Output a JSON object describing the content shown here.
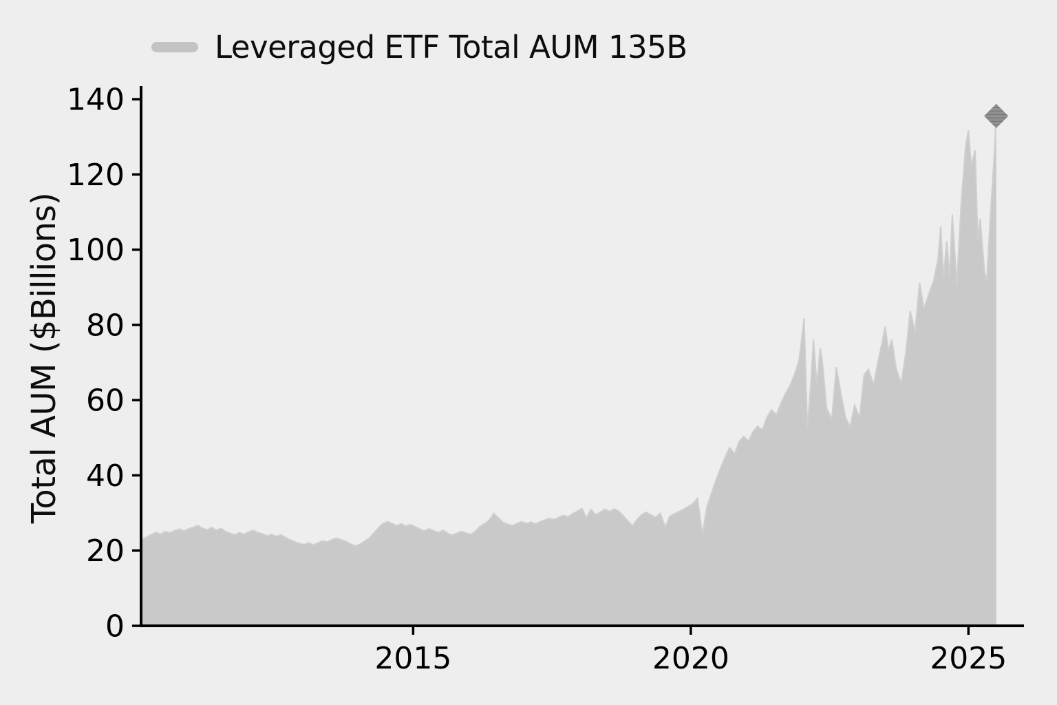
{
  "figure": {
    "background_color": "#eeeeee"
  },
  "chart_data": {
    "type": "area",
    "title": "",
    "legend_label": "Leveraged ETF Total AUM 135B",
    "legend_position": "top-left",
    "xlabel": "",
    "ylabel": "Total AUM ($Billions)",
    "xlim": [
      2010.1,
      2026.0
    ],
    "ylim": [
      0,
      143.5
    ],
    "xticks": [
      2015,
      2020,
      2025
    ],
    "yticks": [
      0,
      20,
      40,
      60,
      80,
      100,
      120,
      140
    ],
    "grid": false,
    "colors": {
      "background": "#eeeeee",
      "area_fill": "#c9c9c9",
      "edge_line": "#cfcfcf",
      "legend_swatch": "#c3c3c3",
      "marker_fill": "#919191",
      "marker_hatch": "#6f6f6f",
      "axis": "#000000",
      "tick_text": "#000000"
    },
    "end_marker": {
      "shape": "diamond",
      "x": 2025.5,
      "y": 135,
      "value_label": "135B"
    },
    "series": [
      {
        "name": "Leveraged ETF Total AUM",
        "x": [
          2010.12,
          2010.2,
          2010.29,
          2010.37,
          2010.45,
          2010.54,
          2010.62,
          2010.7,
          2010.79,
          2010.87,
          2010.95,
          2011.04,
          2011.12,
          2011.2,
          2011.29,
          2011.37,
          2011.45,
          2011.54,
          2011.62,
          2011.7,
          2011.79,
          2011.87,
          2011.95,
          2012.04,
          2012.12,
          2012.2,
          2012.29,
          2012.37,
          2012.45,
          2012.54,
          2012.62,
          2012.7,
          2012.79,
          2012.87,
          2012.95,
          2013.04,
          2013.12,
          2013.2,
          2013.29,
          2013.37,
          2013.45,
          2013.54,
          2013.62,
          2013.7,
          2013.79,
          2013.87,
          2013.95,
          2014.04,
          2014.12,
          2014.2,
          2014.29,
          2014.37,
          2014.45,
          2014.54,
          2014.62,
          2014.7,
          2014.79,
          2014.87,
          2014.95,
          2015.04,
          2015.12,
          2015.2,
          2015.29,
          2015.37,
          2015.45,
          2015.54,
          2015.62,
          2015.7,
          2015.79,
          2015.87,
          2015.95,
          2016.04,
          2016.12,
          2016.2,
          2016.29,
          2016.37,
          2016.45,
          2016.54,
          2016.62,
          2016.7,
          2016.79,
          2016.87,
          2016.95,
          2017.04,
          2017.12,
          2017.2,
          2017.29,
          2017.37,
          2017.45,
          2017.54,
          2017.62,
          2017.7,
          2017.79,
          2017.87,
          2017.95,
          2018.04,
          2018.12,
          2018.2,
          2018.29,
          2018.37,
          2018.45,
          2018.54,
          2018.62,
          2018.7,
          2018.79,
          2018.87,
          2018.95,
          2019.04,
          2019.12,
          2019.2,
          2019.29,
          2019.37,
          2019.45,
          2019.54,
          2019.62,
          2019.7,
          2019.79,
          2019.87,
          2019.95,
          2020.04,
          2020.12,
          2020.21,
          2020.29,
          2020.37,
          2020.45,
          2020.54,
          2020.62,
          2020.7,
          2020.79,
          2020.87,
          2020.95,
          2021.04,
          2021.12,
          2021.2,
          2021.29,
          2021.37,
          2021.45,
          2021.54,
          2021.62,
          2021.7,
          2021.79,
          2021.87,
          2021.95,
          2022.04,
          2022.1,
          2022.16,
          2022.21,
          2022.27,
          2022.33,
          2022.37,
          2022.45,
          2022.54,
          2022.62,
          2022.7,
          2022.79,
          2022.87,
          2022.95,
          2023.04,
          2023.12,
          2023.2,
          2023.29,
          2023.37,
          2023.45,
          2023.5,
          2023.56,
          2023.62,
          2023.7,
          2023.79,
          2023.87,
          2023.95,
          2024.04,
          2024.12,
          2024.2,
          2024.29,
          2024.37,
          2024.45,
          2024.5,
          2024.55,
          2024.61,
          2024.66,
          2024.71,
          2024.79,
          2024.87,
          2024.95,
          2025.0,
          2025.05,
          2025.12,
          2025.17,
          2025.21,
          2025.29,
          2025.33,
          2025.38,
          2025.45,
          2025.5
        ],
        "y": [
          23.0,
          23.6,
          24.3,
          24.8,
          24.4,
          25.1,
          24.7,
          25.3,
          25.7,
          25.2,
          25.8,
          26.2,
          26.7,
          26.0,
          25.5,
          26.2,
          25.4,
          25.9,
          25.1,
          24.6,
          24.2,
          24.8,
          24.3,
          25.0,
          25.4,
          24.8,
          24.4,
          23.9,
          24.3,
          23.8,
          24.2,
          23.5,
          22.8,
          22.3,
          21.9,
          21.6,
          22.1,
          21.5,
          22.1,
          22.6,
          22.3,
          22.9,
          23.3,
          22.9,
          22.4,
          21.8,
          21.2,
          21.7,
          22.4,
          23.2,
          24.6,
          26.0,
          27.1,
          27.7,
          27.2,
          26.6,
          27.1,
          26.5,
          26.9,
          26.3,
          25.7,
          25.2,
          25.8,
          25.3,
          24.8,
          25.4,
          24.6,
          24.1,
          24.6,
          25.1,
          24.7,
          24.3,
          25.1,
          26.4,
          27.2,
          28.1,
          29.9,
          28.6,
          27.5,
          27.0,
          26.7,
          27.2,
          27.7,
          27.2,
          27.6,
          27.1,
          27.7,
          28.1,
          28.6,
          28.2,
          28.8,
          29.4,
          29.0,
          29.8,
          30.4,
          31.2,
          28.7,
          30.9,
          29.5,
          30.2,
          31.0,
          30.4,
          31.1,
          30.5,
          29.2,
          27.8,
          26.6,
          28.4,
          29.6,
          30.2,
          29.4,
          28.9,
          29.9,
          26.2,
          29.1,
          29.7,
          30.4,
          31.0,
          31.7,
          32.5,
          33.9,
          24.3,
          31.6,
          35.1,
          38.6,
          42.1,
          44.9,
          47.4,
          45.7,
          49.0,
          50.3,
          49.1,
          51.6,
          53.1,
          52.1,
          55.4,
          57.4,
          56.1,
          59.0,
          61.6,
          64.0,
          66.9,
          70.6,
          81.8,
          52.5,
          64.2,
          76.1,
          63.9,
          73.8,
          70.1,
          57.6,
          55.1,
          68.8,
          62.1,
          55.2,
          53.0,
          58.7,
          55.3,
          66.7,
          68.2,
          64.1,
          70.2,
          75.6,
          79.6,
          73.2,
          76.1,
          68.3,
          64.5,
          72.3,
          83.7,
          78.2,
          91.2,
          84.3,
          88.4,
          91.6,
          97.2,
          106.2,
          92.7,
          102.3,
          92.8,
          109.4,
          90.6,
          112.4,
          127.6,
          131.8,
          122.3,
          126.4,
          102.6,
          108.2,
          94.2,
          91.6,
          105.3,
          121.5,
          135.0
        ]
      }
    ]
  }
}
